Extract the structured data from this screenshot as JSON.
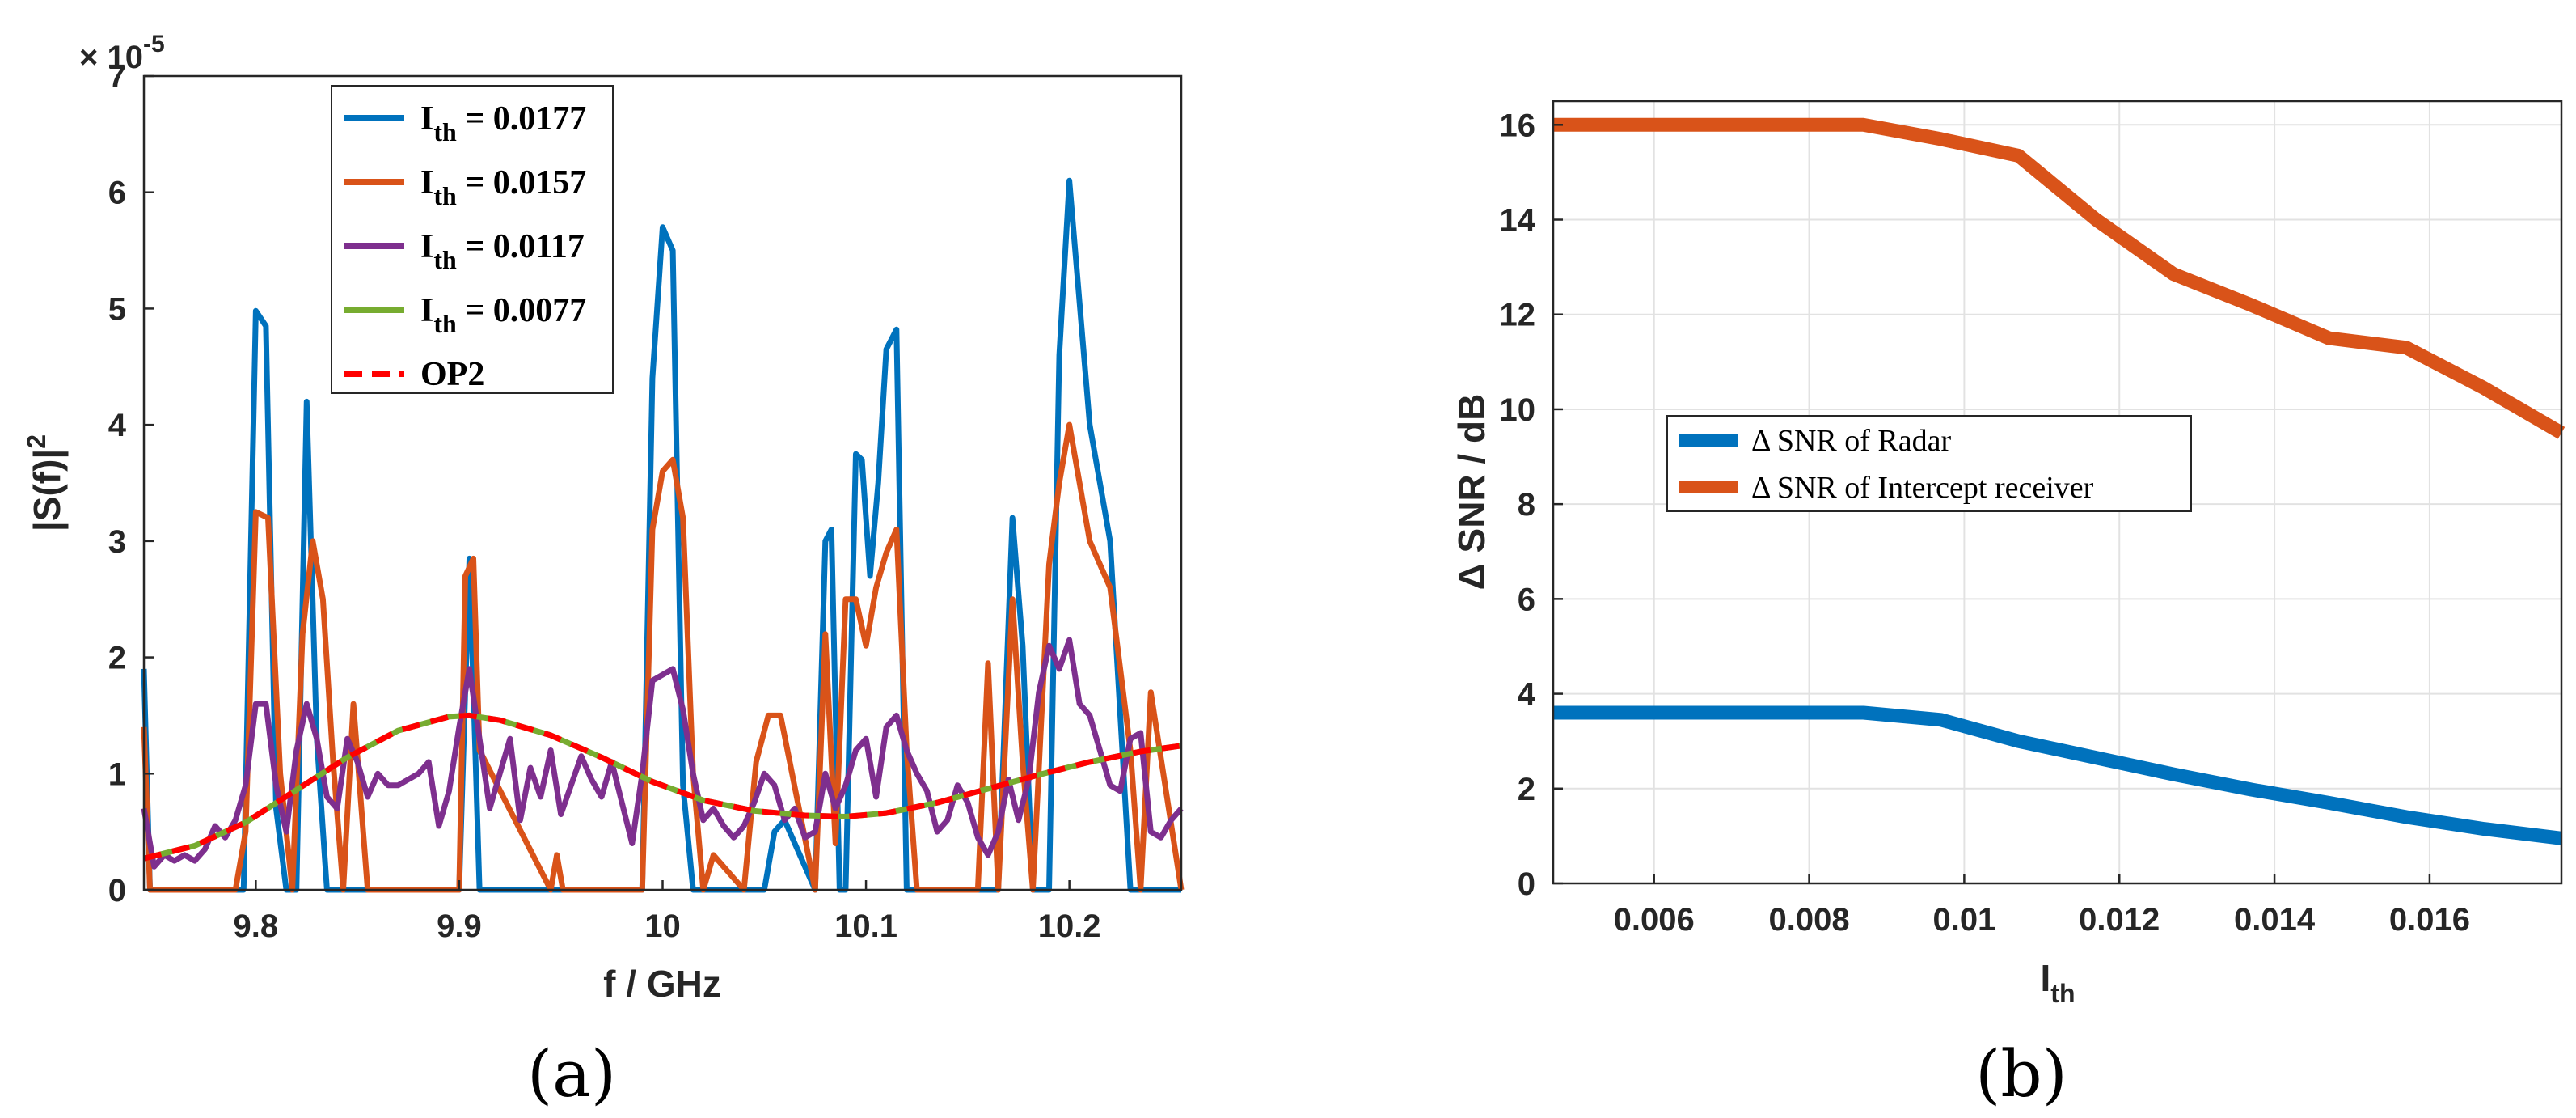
{
  "chart_data": [
    {
      "type": "line",
      "panel_label": "(a)",
      "xlabel": "f / GHz",
      "ylabel": "|S(f)|",
      "ylabel_sup": "2",
      "ylim": [
        0,
        7
      ],
      "xlim": [
        9.745,
        10.255
      ],
      "y_exponent": "× 10",
      "y_exponent_power": "-5",
      "x_ticks": [
        9.8,
        9.9,
        10,
        10.1,
        10.2
      ],
      "x_tick_labels": [
        "9.8",
        "9.9",
        "10",
        "10.1",
        "10.2"
      ],
      "y_ticks": [
        0,
        1,
        2,
        3,
        4,
        5,
        6,
        7
      ],
      "y_tick_labels": [
        "0",
        "1",
        "2",
        "3",
        "4",
        "5",
        "6",
        "7"
      ],
      "grid": false,
      "legend_position": "top-center",
      "series": [
        {
          "name": "I",
          "name_sub": "th",
          "name_suffix": " = 0.0177",
          "color": "#0072bd",
          "style": "solid",
          "x": [
            9.745,
            9.748,
            9.752,
            9.79,
            9.794,
            9.8,
            9.805,
            9.81,
            9.815,
            9.82,
            9.825,
            9.83,
            9.835,
            9.84,
            9.9,
            9.905,
            9.91,
            9.99,
            9.995,
            10,
            10.005,
            10.01,
            10.015,
            10.05,
            10.055,
            10.06,
            10.075,
            10.08,
            10.083,
            10.087,
            10.09,
            10.095,
            10.098,
            10.102,
            10.106,
            10.11,
            10.115,
            10.12,
            10.125,
            10.165,
            10.172,
            10.177,
            10.182,
            10.19,
            10.195,
            10.2,
            10.21,
            10.22,
            10.23,
            10.24,
            10.255
          ],
          "y": [
            1.9,
            0,
            0,
            0,
            0,
            4.98,
            4.85,
            0.7,
            0,
            0,
            4.2,
            1.3,
            0,
            0,
            0,
            2.85,
            0,
            0,
            4.4,
            5.7,
            5.5,
            0.9,
            0,
            0,
            0.5,
            0.6,
            0,
            3.0,
            3.1,
            0,
            0,
            3.75,
            3.7,
            2.7,
            3.5,
            4.65,
            4.82,
            0,
            0,
            0,
            3.2,
            2.1,
            0,
            0,
            4.6,
            6.1,
            4.0,
            3.0,
            0,
            0,
            0
          ]
        },
        {
          "name": "I",
          "name_sub": "th",
          "name_suffix": " = 0.0157",
          "color": "#d95319",
          "style": "solid",
          "x": [
            9.745,
            9.748,
            9.752,
            9.79,
            9.795,
            9.8,
            9.806,
            9.812,
            9.818,
            9.823,
            9.828,
            9.833,
            9.838,
            9.843,
            9.848,
            9.855,
            9.9,
            9.903,
            9.907,
            9.91,
            9.945,
            9.948,
            9.951,
            9.99,
            9.995,
            10,
            10.005,
            10.01,
            10.015,
            10.02,
            10.025,
            10.04,
            10.046,
            10.052,
            10.058,
            10.075,
            10.08,
            10.085,
            10.09,
            10.095,
            10.1,
            10.105,
            10.11,
            10.115,
            10.12,
            10.125,
            10.13,
            10.15,
            10.155,
            10.16,
            10.165,
            10.172,
            10.177,
            10.182,
            10.19,
            10.195,
            10.2,
            10.21,
            10.22,
            10.23,
            10.235,
            10.24,
            10.255
          ],
          "y": [
            1.4,
            0,
            0,
            0,
            0.5,
            3.25,
            3.2,
            1.0,
            0,
            2.2,
            3.0,
            2.5,
            1.1,
            0,
            1.6,
            0,
            0,
            2.7,
            2.85,
            1.2,
            0,
            0.3,
            0,
            0,
            3.1,
            3.6,
            3.7,
            3.2,
            1.0,
            0,
            0.3,
            0,
            1.1,
            1.5,
            1.5,
            0,
            2.2,
            0.4,
            2.5,
            2.5,
            2.1,
            2.6,
            2.9,
            3.1,
            1.2,
            0,
            0,
            0,
            0,
            1.95,
            0,
            2.5,
            1.1,
            0,
            2.8,
            3.5,
            4.0,
            3.0,
            2.6,
            1.2,
            0,
            1.7,
            0
          ]
        },
        {
          "name": "I",
          "name_sub": "th",
          "name_suffix": " = 0.0117",
          "color": "#7e2f8e",
          "style": "solid",
          "x": [
            9.745,
            9.75,
            9.755,
            9.76,
            9.765,
            9.77,
            9.775,
            9.78,
            9.785,
            9.79,
            9.795,
            9.8,
            9.805,
            9.81,
            9.815,
            9.82,
            9.825,
            9.83,
            9.835,
            9.84,
            9.845,
            9.85,
            9.855,
            9.86,
            9.865,
            9.87,
            9.875,
            9.88,
            9.885,
            9.89,
            9.895,
            9.9,
            9.905,
            9.91,
            9.915,
            9.92,
            9.925,
            9.93,
            9.935,
            9.94,
            9.945,
            9.95,
            9.955,
            9.96,
            9.965,
            9.97,
            9.975,
            9.98,
            9.985,
            9.99,
            9.995,
            10,
            10.005,
            10.01,
            10.015,
            10.02,
            10.025,
            10.03,
            10.035,
            10.04,
            10.045,
            10.05,
            10.055,
            10.06,
            10.065,
            10.07,
            10.075,
            10.08,
            10.085,
            10.09,
            10.095,
            10.1,
            10.105,
            10.11,
            10.115,
            10.12,
            10.125,
            10.13,
            10.135,
            10.14,
            10.145,
            10.15,
            10.155,
            10.16,
            10.165,
            10.17,
            10.175,
            10.18,
            10.185,
            10.19,
            10.195,
            10.2,
            10.205,
            10.21,
            10.215,
            10.22,
            10.225,
            10.23,
            10.235,
            10.24,
            10.245,
            10.25,
            10.255
          ],
          "y": [
            0.7,
            0.2,
            0.3,
            0.25,
            0.3,
            0.25,
            0.35,
            0.55,
            0.45,
            0.6,
            0.9,
            1.6,
            1.6,
            0.9,
            0.5,
            1.2,
            1.6,
            1.3,
            0.8,
            0.7,
            1.3,
            1.1,
            0.8,
            1.0,
            0.9,
            0.9,
            0.95,
            1.0,
            1.1,
            0.55,
            0.85,
            1.4,
            1.9,
            1.3,
            0.7,
            1.0,
            1.3,
            0.6,
            1.05,
            0.8,
            1.2,
            0.65,
            0.9,
            1.15,
            0.95,
            0.8,
            1.1,
            0.75,
            0.4,
            1.0,
            1.8,
            1.85,
            1.9,
            1.55,
            1.0,
            0.6,
            0.7,
            0.55,
            0.45,
            0.55,
            0.75,
            1.0,
            0.9,
            0.6,
            0.7,
            0.45,
            0.5,
            1.0,
            0.7,
            0.9,
            1.2,
            1.3,
            0.8,
            1.4,
            1.5,
            1.2,
            1.0,
            0.85,
            0.5,
            0.6,
            0.9,
            0.75,
            0.45,
            0.3,
            0.5,
            0.95,
            0.6,
            0.95,
            1.7,
            2.1,
            1.9,
            2.15,
            1.6,
            1.5,
            1.2,
            0.9,
            0.85,
            1.3,
            1.35,
            0.5,
            0.45,
            0.6,
            0.7
          ]
        },
        {
          "name": "I",
          "name_sub": "th",
          "name_suffix": " = 0.0077",
          "color": "#77ac30",
          "style": "solid",
          "x": [
            9.745,
            9.77,
            9.795,
            9.82,
            9.845,
            9.87,
            9.895,
            9.905,
            9.92,
            9.945,
            9.97,
            9.995,
            10.02,
            10.045,
            10.07,
            10.09,
            10.11,
            10.135,
            10.16,
            10.185,
            10.21,
            10.235,
            10.255
          ],
          "y": [
            0.27,
            0.38,
            0.58,
            0.86,
            1.14,
            1.37,
            1.49,
            1.5,
            1.46,
            1.33,
            1.14,
            0.93,
            0.77,
            0.68,
            0.64,
            0.63,
            0.66,
            0.75,
            0.87,
            0.99,
            1.1,
            1.19,
            1.24
          ]
        },
        {
          "name": "OP2",
          "color": "#ff0000",
          "style": "dashed",
          "x": [
            9.745,
            9.77,
            9.795,
            9.82,
            9.845,
            9.87,
            9.895,
            9.905,
            9.92,
            9.945,
            9.97,
            9.995,
            10.02,
            10.045,
            10.07,
            10.09,
            10.11,
            10.135,
            10.16,
            10.185,
            10.21,
            10.235,
            10.255
          ],
          "y": [
            0.27,
            0.38,
            0.58,
            0.86,
            1.14,
            1.37,
            1.49,
            1.5,
            1.46,
            1.33,
            1.14,
            0.93,
            0.77,
            0.68,
            0.64,
            0.63,
            0.66,
            0.75,
            0.87,
            0.99,
            1.1,
            1.19,
            1.24
          ]
        }
      ]
    },
    {
      "type": "line",
      "panel_label": "(b)",
      "xlabel": "I",
      "xlabel_sub": "th",
      "ylabel": "Δ SNR / dB",
      "xlim": [
        0.0047,
        0.0177
      ],
      "ylim": [
        0,
        16.5
      ],
      "x_ticks": [
        0.006,
        0.008,
        0.01,
        0.012,
        0.014,
        0.016
      ],
      "x_tick_labels": [
        "0.006",
        "0.008",
        "0.01",
        "0.012",
        "0.014",
        "0.016"
      ],
      "y_ticks": [
        0,
        2,
        4,
        6,
        8,
        10,
        12,
        14,
        16
      ],
      "y_tick_labels": [
        "0",
        "2",
        "4",
        "6",
        "8",
        "10",
        "12",
        "14",
        "16"
      ],
      "grid": true,
      "legend_position": "center",
      "series": [
        {
          "name": "Δ SNR of Radar",
          "color": "#0072bd",
          "x": [
            0.0047,
            0.0057,
            0.0067,
            0.0077,
            0.0087,
            0.0097,
            0.0107,
            0.0117,
            0.0127,
            0.0137,
            0.0147,
            0.0157,
            0.0167,
            0.0177
          ],
          "y": [
            3.6,
            3.6,
            3.6,
            3.6,
            3.6,
            3.45,
            3.0,
            2.65,
            2.3,
            1.98,
            1.7,
            1.4,
            1.15,
            0.95
          ]
        },
        {
          "name": "Δ SNR of Intercept receiver",
          "color": "#d95319",
          "x": [
            0.0047,
            0.0057,
            0.0067,
            0.0077,
            0.0087,
            0.0097,
            0.0107,
            0.0117,
            0.0127,
            0.0137,
            0.0147,
            0.0157,
            0.0167,
            0.0177
          ],
          "y": [
            16.0,
            16.0,
            16.0,
            16.0,
            16.0,
            15.7,
            15.35,
            14.0,
            12.85,
            12.2,
            11.5,
            11.3,
            10.45,
            9.5
          ]
        }
      ]
    }
  ]
}
